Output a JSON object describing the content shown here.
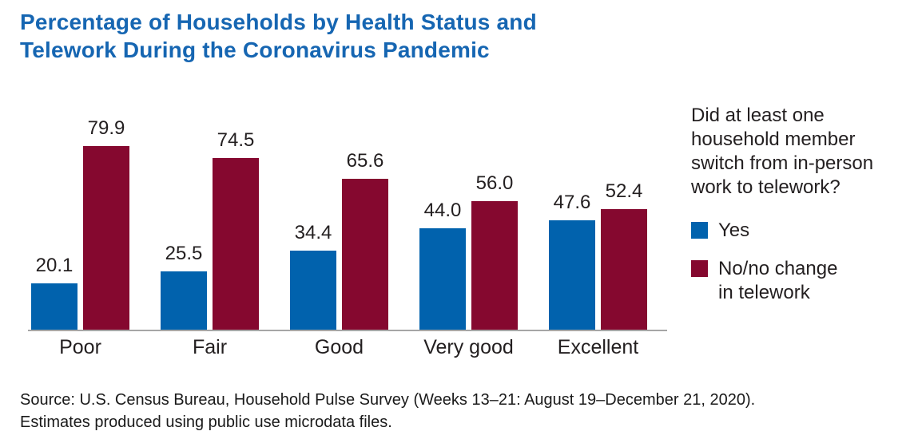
{
  "title": {
    "line1": "Percentage of Households by Health Status and",
    "line2": "Telework During the Coronavirus Pandemic"
  },
  "legend": {
    "question": "Did at least one household member switch from in-person work to telework?",
    "question_lines": [
      "Did at least one",
      "household member",
      "switch from in-person",
      "work to telework?"
    ],
    "items": [
      {
        "label": "Yes",
        "label_lines": [
          "Yes"
        ]
      },
      {
        "label": "No/no change in telework",
        "label_lines": [
          "No/no change",
          "in telework"
        ]
      }
    ]
  },
  "source": {
    "line1": "Source: U.S. Census Bureau, Household Pulse Survey (Weeks 13–21: August 19–December 21, 2020).",
    "line2": "Estimates produced using public use microdata files."
  },
  "colors": {
    "title_blue": "#1666B2",
    "series_yes_blue": "#0162AD",
    "series_no_red": "#85082F",
    "axis_line_gray": "#A6A6A6",
    "text_dark": "#231F20"
  },
  "chart_data": {
    "type": "bar",
    "title": "Percentage of Households by Health Status and Telework During the Coronavirus Pandemic",
    "categories": [
      "Poor",
      "Fair",
      "Good",
      "Very good",
      "Excellent"
    ],
    "series": [
      {
        "name": "Yes",
        "color": "#0162AD",
        "values": [
          20.1,
          25.5,
          34.4,
          44.0,
          47.6
        ]
      },
      {
        "name": "No/no change in telework",
        "color": "#85082F",
        "values": [
          79.9,
          74.5,
          65.6,
          56.0,
          52.4
        ]
      }
    ],
    "value_labels_shown": true,
    "value_label_decimals": 1,
    "xlabel": "",
    "ylabel": "",
    "ylim": [
      0,
      100
    ],
    "grid": false,
    "axis_ticks_shown": false,
    "legend_position": "right",
    "legend_title": "Did at least one household member switch from in-person work to telework?"
  }
}
